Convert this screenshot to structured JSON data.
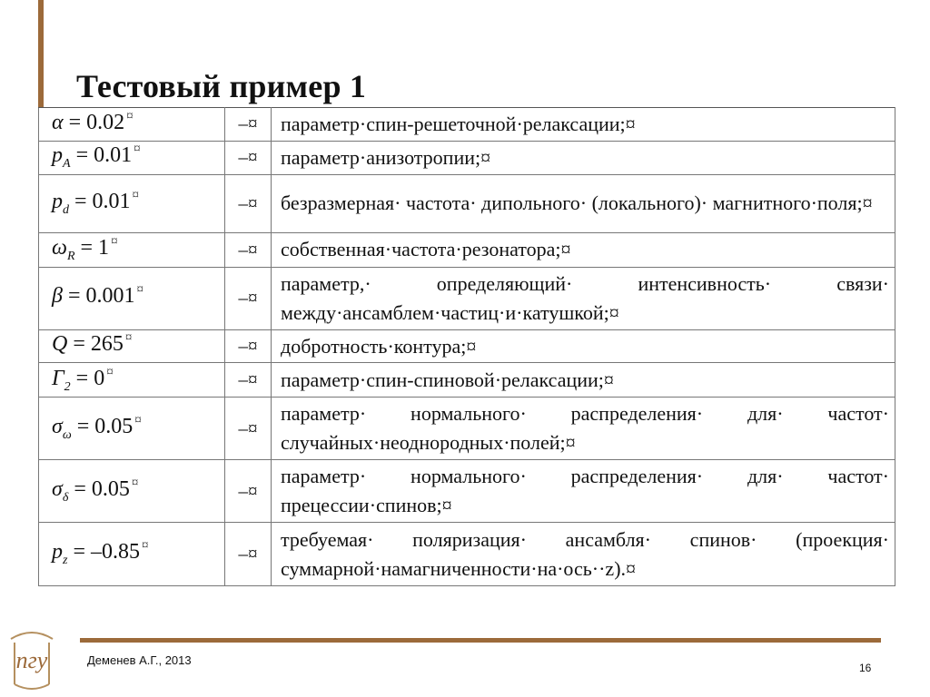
{
  "title": "Тестовый пример 1",
  "dash": "–¤",
  "rows": [
    {
      "symbol": "α",
      "sub": "",
      "value": " = 0.02",
      "pmark": "¤",
      "text": "параметр·спин-решеточной·релаксации;¤"
    },
    {
      "symbol": "p",
      "sub": "A",
      "value": " = 0.01",
      "pmark": "¤",
      "text": "параметр·анизотропии;¤"
    },
    {
      "symbol": "p",
      "sub": "d",
      "value": " = 0.01",
      "pmark": "¤",
      "text": "безразмерная· частота· дипольного· (локального)· магнитного·поля;¤"
    },
    {
      "symbol": "ω",
      "sub": "R",
      "value": " = 1",
      "pmark": "¤",
      "text": "собственная·частота·резонатора;¤"
    },
    {
      "symbol": "β",
      "sub": "",
      "value": " = 0.001",
      "pmark": "¤",
      "text": "параметр,· определяющий· интенсивность· связи· между·ансамблем·частиц·и·катушкой;¤"
    },
    {
      "symbol": "Q",
      "sub": "",
      "value": " = 265",
      "pmark": "¤",
      "text": "добротность·контура;¤"
    },
    {
      "symbol": "Γ",
      "sub": "2",
      "value": " = 0",
      "pmark": "¤",
      "text": "параметр·спин-спиновой·релаксации;¤"
    },
    {
      "symbol": "σ",
      "sub": "ω",
      "value": " = 0.05",
      "pmark": "¤",
      "text": "параметр· нормального· распределения· для· частот· случайных·неоднородных·полей;¤"
    },
    {
      "symbol": "σ",
      "sub": "δ",
      "value": " = 0.05",
      "pmark": "¤",
      "text": "параметр· нормального· распределения· для· частот· прецессии·спинов;¤"
    },
    {
      "symbol": "p",
      "sub": "z",
      "value": " = –0.85",
      "pmark": "¤",
      "text": "требуемая· поляризация· ансамбля· спинов· (проекция· суммарной·намагниченности·на·ось··z).¤"
    }
  ],
  "footer": {
    "author": "Деменев А.Г., 2013",
    "page": "16"
  },
  "colors": {
    "accent": "#9c6a3a"
  }
}
